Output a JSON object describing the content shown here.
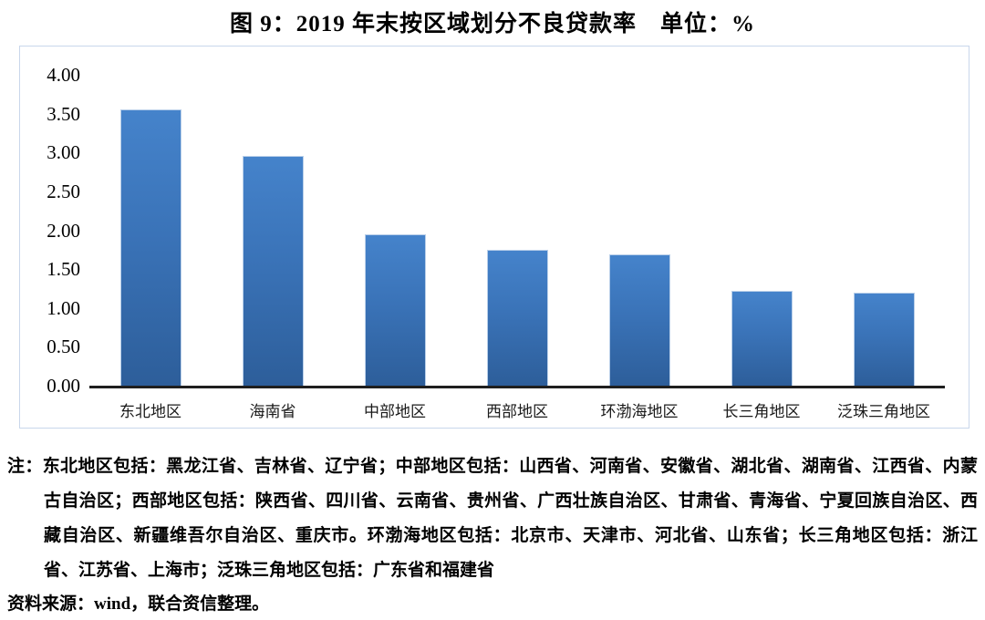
{
  "header": {
    "title": "图 9：2019 年末按区域划分不良贷款率　单位：%"
  },
  "chart_data": {
    "type": "bar",
    "title": "图 9：2019 年末按区域划分不良贷款率",
    "unit_label": "单位：%",
    "categories": [
      "东北地区",
      "海南省",
      "中部地区",
      "西部地区",
      "环渤海地区",
      "长三角地区",
      "泛珠三角地区"
    ],
    "values": [
      3.55,
      2.96,
      1.95,
      1.75,
      1.69,
      1.22,
      1.2
    ],
    "xlabel": "",
    "ylabel": "",
    "ylim": [
      0,
      4.0
    ],
    "ytick_step": 0.5,
    "ytick_labels": [
      "4.00",
      "3.50",
      "3.00",
      "2.50",
      "2.00",
      "1.50",
      "1.00",
      "0.50",
      "0.00"
    ],
    "grid": false,
    "legend": false,
    "bar_color_top": "#4583cb",
    "bar_color_bottom": "#2d5e9a",
    "frame_border_color": "#c9d7eb",
    "axis_line_color": "#1f1f1f"
  },
  "notes": {
    "lines": [
      "注：东北地区包括：黑龙江省、吉林省、辽宁省；中部地区包括：山西省、河南省、安徽省、湖北省、湖南省、江西省、内蒙",
      "古自治区；西部地区包括：陕西省、四川省、云南省、贵州省、广西壮族自治区、甘肃省、青海省、宁夏回族自治区、西",
      "藏自治区、新疆维吾尔自治区、重庆市。环渤海地区包括：北京市、天津市、河北省、山东省；长三角地区包括：浙江",
      "省、江苏省、上海市；泛珠三角地区包括：广东省和福建省"
    ]
  },
  "source": {
    "text": "资料来源：wind，联合资信整理。"
  }
}
